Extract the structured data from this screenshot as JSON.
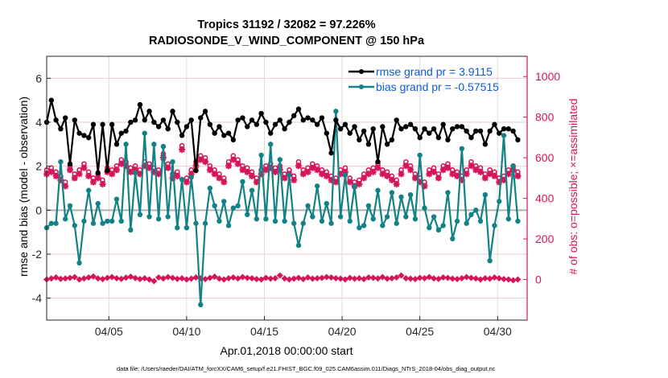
{
  "chart_data": {
    "type": "line",
    "title": "Tropics 31192 / 32082 = 97.226%",
    "subtitle": "RADIOSONDE_V_WIND_COMPONENT @ 150 hPa",
    "xlabel": "Apr.01,2018 00:00:00 start",
    "ylabel": "rmse and bias (model - observation)",
    "y2label": "# of obs: o=possible; ×=assimilated",
    "footer": "data file: /Users/raeder/DAI/ATM_forcXX/CAM6_setup/f.e21.FHIST_BGC.f09_025.CAM6assim.011/Diags_NTrS_2018-04/obs_diag_output.nc",
    "xlim_days": [
      0,
      30.9
    ],
    "ylim": [
      -5,
      7
    ],
    "y2lim": [
      -200,
      1100
    ],
    "grid": true,
    "legend_position": "top-right",
    "x_ticks": [
      {
        "day": 4,
        "label": "04/05"
      },
      {
        "day": 9,
        "label": "04/10"
      },
      {
        "day": 14,
        "label": "04/15"
      },
      {
        "day": 19,
        "label": "04/20"
      },
      {
        "day": 24,
        "label": "04/25"
      },
      {
        "day": 29,
        "label": "04/30"
      }
    ],
    "y_ticks": [
      {
        "value": 6,
        "label": "6"
      },
      {
        "value": 4,
        "label": "4"
      },
      {
        "value": 2,
        "label": "2"
      },
      {
        "value": 0,
        "label": "0"
      },
      {
        "value": -2,
        "label": "-2"
      },
      {
        "value": -4,
        "label": "-4"
      }
    ],
    "y2_ticks": [
      {
        "value": 1000,
        "label": "1000"
      },
      {
        "value": 800,
        "label": "800"
      },
      {
        "value": 600,
        "label": "600"
      },
      {
        "value": 400,
        "label": "400"
      },
      {
        "value": 200,
        "label": "200"
      },
      {
        "value": 0,
        "label": "0"
      }
    ],
    "colors": {
      "rmse": "#000000",
      "bias": "#128284",
      "obs": "#d6145a",
      "legend_text": "#0b5bd6",
      "grid": "#e9c9d6",
      "zero_line": "#b0b0b0"
    },
    "series": [
      {
        "name": "rmse grand pr = 3.9115",
        "axis": "left",
        "x_days": [
          0.0,
          0.3,
          0.6,
          0.9,
          1.2,
          1.5,
          1.8,
          2.1,
          2.4,
          2.7,
          3.0,
          3.3,
          3.6,
          3.9,
          4.2,
          4.5,
          4.8,
          5.1,
          5.4,
          5.7,
          6.0,
          6.3,
          6.6,
          6.9,
          7.2,
          7.5,
          7.8,
          8.1,
          8.4,
          8.7,
          9.0,
          9.3,
          9.6,
          9.9,
          10.2,
          10.5,
          10.8,
          11.1,
          11.4,
          11.7,
          12.0,
          12.3,
          12.6,
          12.9,
          13.2,
          13.5,
          13.8,
          14.1,
          14.4,
          14.7,
          15.0,
          15.3,
          15.6,
          15.9,
          16.2,
          16.5,
          16.8,
          17.1,
          17.4,
          17.7,
          18.0,
          18.3,
          18.6,
          18.9,
          19.2,
          19.5,
          19.8,
          20.1,
          20.4,
          20.7,
          21.0,
          21.3,
          21.6,
          21.9,
          22.2,
          22.5,
          22.8,
          23.1,
          23.4,
          23.7,
          24.0,
          24.3,
          24.6,
          24.9,
          25.2,
          25.5,
          25.8,
          26.1,
          26.4,
          26.7,
          27.0,
          27.3,
          27.6,
          27.9,
          28.2,
          28.5,
          28.8,
          29.1,
          29.4,
          29.7,
          30.0,
          30.3
        ],
        "values": [
          4.0,
          5.0,
          4.1,
          3.7,
          4.2,
          2.1,
          4.1,
          3.5,
          3.4,
          3.3,
          3.9,
          1.7,
          3.9,
          1.8,
          3.9,
          3.0,
          3.5,
          3.6,
          4.0,
          4.1,
          4.8,
          4.1,
          4.5,
          4.0,
          3.8,
          4.1,
          3.7,
          4.5,
          4.0,
          3.4,
          3.8,
          4.1,
          1.8,
          4.2,
          4.5,
          3.9,
          3.5,
          3.8,
          3.4,
          3.5,
          3.2,
          4.1,
          4.2,
          3.8,
          4.1,
          3.9,
          4.4,
          4.0,
          3.5,
          3.9,
          4.1,
          3.7,
          4.0,
          4.3,
          4.6,
          4.1,
          4.2,
          4.1,
          3.9,
          4.2,
          3.5,
          2.6,
          4.1,
          3.7,
          3.9,
          3.5,
          3.8,
          3.2,
          3.6,
          3.0,
          3.7,
          2.2,
          3.8,
          3.0,
          3.2,
          4.1,
          3.7,
          3.8,
          3.9,
          3.7,
          3.3,
          3.7,
          3.5,
          3.7,
          3.3,
          3.9,
          3.2,
          3.7,
          3.8,
          3.8,
          3.6,
          3.3,
          3.6,
          3.6,
          3.0,
          3.6,
          3.9,
          3.5,
          3.7,
          3.7,
          3.6,
          3.2
        ],
        "note": "approximate readings"
      },
      {
        "name": "bias grand pr = -0.57515",
        "axis": "left",
        "x_days": [],
        "values": [],
        "note": "filled by script with approximate readings"
      },
      {
        "name": "obs possible (o)",
        "axis": "right"
      },
      {
        "name": "obs assimilated (×)",
        "axis": "right"
      }
    ]
  }
}
